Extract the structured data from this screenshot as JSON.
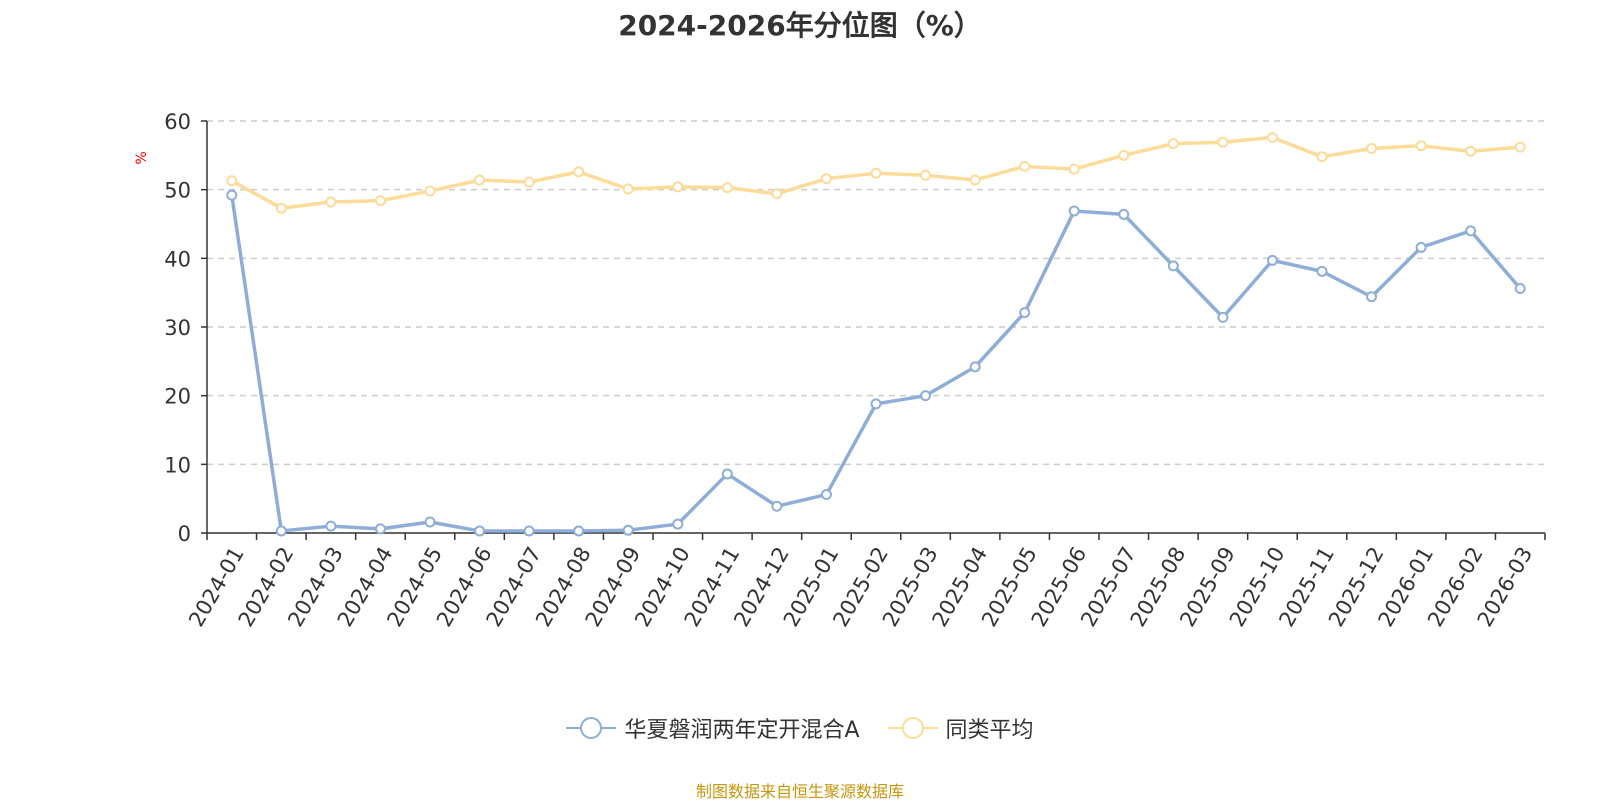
{
  "chart_data": {
    "type": "line",
    "title": "2024-2026年分位图（%）",
    "ylabel": "%",
    "xlabel": "",
    "ylim": [
      0,
      60
    ],
    "yticks": [
      0,
      10,
      20,
      30,
      40,
      50,
      60
    ],
    "grid": true,
    "legend_position": "bottom-center",
    "categories": [
      "2024-01",
      "2024-02",
      "2024-03",
      "2024-04",
      "2024-05",
      "2024-06",
      "2024-07",
      "2024-08",
      "2024-09",
      "2024-10",
      "2024-11",
      "2024-12",
      "2025-01",
      "2025-02",
      "2025-03",
      "2025-04",
      "2025-05",
      "2025-06",
      "2025-07",
      "2025-08",
      "2025-09",
      "2025-10",
      "2025-11",
      "2025-12",
      "2026-01",
      "2026-02",
      "2026-03"
    ],
    "series": [
      {
        "name": "华夏磐润两年定开混合A",
        "color": "#8eaed8",
        "values": [
          49.2,
          0.3,
          1.0,
          0.6,
          1.6,
          0.3,
          0.3,
          0.3,
          0.4,
          1.3,
          8.6,
          3.9,
          5.6,
          18.8,
          20.0,
          24.2,
          32.1,
          46.9,
          46.4,
          38.9,
          31.4,
          39.7,
          38.1,
          34.4,
          41.6,
          44.0,
          35.6
        ]
      },
      {
        "name": "同类平均",
        "color": "#fddb99",
        "values": [
          51.3,
          47.3,
          48.2,
          48.4,
          49.8,
          51.4,
          51.1,
          52.6,
          50.1,
          50.4,
          50.3,
          49.4,
          51.6,
          52.4,
          52.1,
          51.4,
          53.4,
          53.0,
          55.0,
          56.7,
          56.9,
          57.6,
          54.8,
          56.0,
          56.4,
          55.6,
          56.2
        ]
      }
    ]
  },
  "source_note": "制图数据来自恒生聚源数据库",
  "colors": {
    "axis": "#333333",
    "grid": "#cccccc",
    "ylabel": "#ff0000",
    "source": "#c8960c"
  }
}
